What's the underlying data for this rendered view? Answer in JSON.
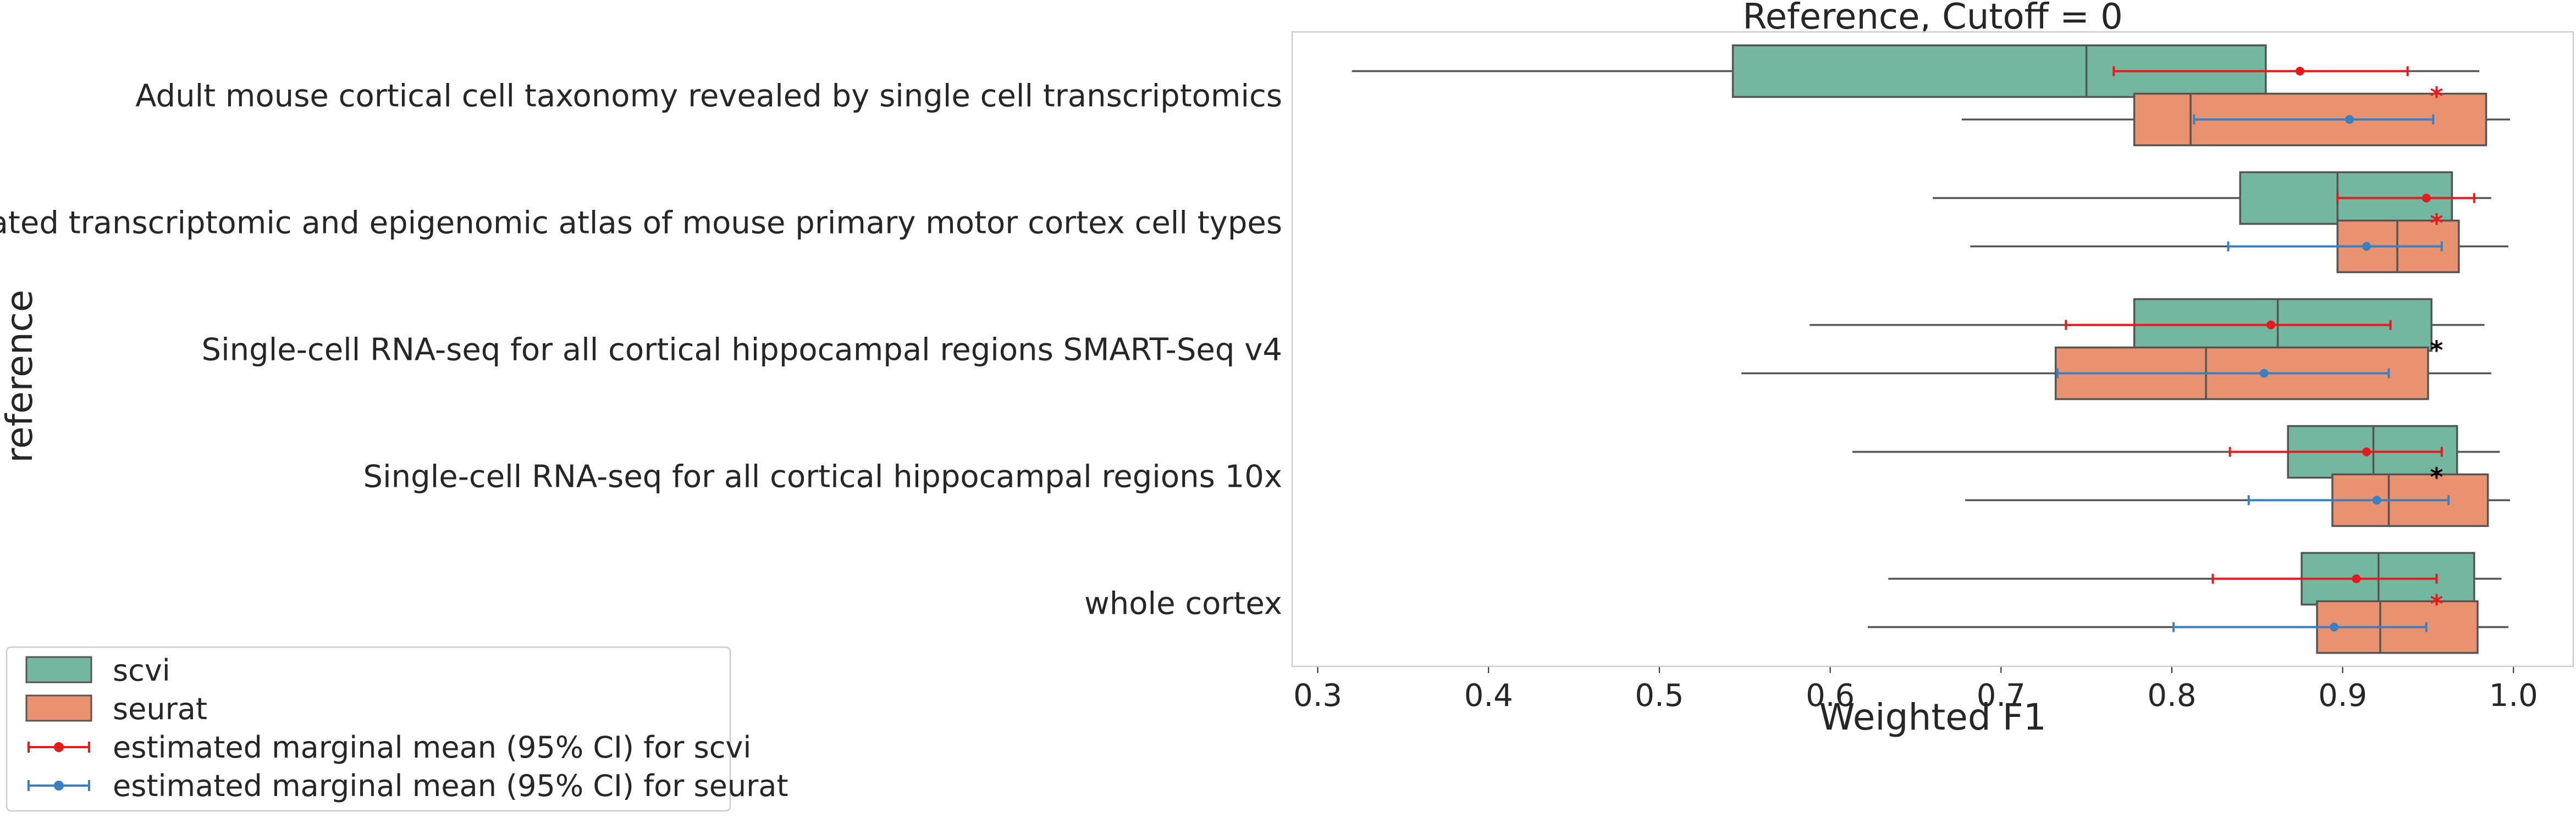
{
  "chart_data": {
    "type": "box",
    "orientation": "horizontal",
    "title": "Reference, Cutoff = 0",
    "xlabel": "Weighted F1",
    "ylabel": "reference",
    "xlim": [
      0.285,
      1.035
    ],
    "xticks": [
      0.3,
      0.4,
      0.5,
      0.6,
      0.7,
      0.8,
      0.9,
      1.0
    ],
    "xtick_labels": [
      "0.3",
      "0.4",
      "0.5",
      "0.6",
      "0.7",
      "0.8",
      "0.9",
      "1.0"
    ],
    "grid": false,
    "legend_position": "lower-left outside",
    "categories": [
      "Adult mouse cortical cell taxonomy revealed by single cell transcriptomics",
      "An integrated transcriptomic and epigenomic atlas of mouse primary motor cortex cell types",
      "Single-cell RNA-seq for all cortical  hippocampal regions SMART-Seq v4",
      "Single-cell RNA-seq for all cortical  hippocampal regions 10x",
      "whole cortex"
    ],
    "series": [
      {
        "name": "scvi",
        "color": "#73b7a0",
        "boxes": [
          {
            "whisker_low": 0.32,
            "q1": 0.543,
            "median": 0.75,
            "q3": 0.855,
            "whisker_high": 0.98
          },
          {
            "whisker_low": 0.66,
            "q1": 0.84,
            "median": 0.897,
            "q3": 0.964,
            "whisker_high": 0.987
          },
          {
            "whisker_low": 0.588,
            "q1": 0.778,
            "median": 0.862,
            "q3": 0.952,
            "whisker_high": 0.983
          },
          {
            "whisker_low": 0.613,
            "q1": 0.868,
            "median": 0.918,
            "q3": 0.967,
            "whisker_high": 0.992
          },
          {
            "whisker_low": 0.634,
            "q1": 0.876,
            "median": 0.921,
            "q3": 0.977,
            "whisker_high": 0.993
          }
        ]
      },
      {
        "name": "seurat",
        "color": "#e9926f",
        "boxes": [
          {
            "whisker_low": 0.677,
            "q1": 0.778,
            "median": 0.811,
            "q3": 0.984,
            "whisker_high": 0.998
          },
          {
            "whisker_low": 0.682,
            "q1": 0.897,
            "median": 0.932,
            "q3": 0.968,
            "whisker_high": 0.997
          },
          {
            "whisker_low": 0.548,
            "q1": 0.732,
            "median": 0.82,
            "q3": 0.95,
            "whisker_high": 0.987
          },
          {
            "whisker_low": 0.679,
            "q1": 0.894,
            "median": 0.927,
            "q3": 0.985,
            "whisker_high": 0.998
          },
          {
            "whisker_low": 0.622,
            "q1": 0.885,
            "median": 0.922,
            "q3": 0.979,
            "whisker_high": 0.997
          }
        ]
      }
    ],
    "marginal_means": [
      {
        "name": "estimated marginal mean (95% CI) for scvi",
        "color": "#e41a1c",
        "points": [
          {
            "mean": 0.875,
            "ci_low": 0.766,
            "ci_high": 0.938
          },
          {
            "mean": 0.949,
            "ci_low": 0.897,
            "ci_high": 0.977
          },
          {
            "mean": 0.858,
            "ci_low": 0.738,
            "ci_high": 0.928
          },
          {
            "mean": 0.914,
            "ci_low": 0.834,
            "ci_high": 0.958
          },
          {
            "mean": 0.908,
            "ci_low": 0.824,
            "ci_high": 0.955
          }
        ]
      },
      {
        "name": "estimated marginal mean (95% CI) for seurat",
        "color": "#3a7fc1",
        "points": [
          {
            "mean": 0.904,
            "ci_low": 0.813,
            "ci_high": 0.953
          },
          {
            "mean": 0.914,
            "ci_low": 0.833,
            "ci_high": 0.958
          },
          {
            "mean": 0.854,
            "ci_low": 0.733,
            "ci_high": 0.927
          },
          {
            "mean": 0.92,
            "ci_low": 0.845,
            "ci_high": 0.962
          },
          {
            "mean": 0.895,
            "ci_low": 0.801,
            "ci_high": 0.949
          }
        ]
      }
    ],
    "significance_markers": [
      {
        "category_index": 0,
        "value": 0.955,
        "label": "*",
        "color": "#e41a1c"
      },
      {
        "category_index": 1,
        "value": 0.955,
        "label": "*",
        "color": "#e41a1c"
      },
      {
        "category_index": 2,
        "value": 0.955,
        "label": "*",
        "color": "#000000"
      },
      {
        "category_index": 3,
        "value": 0.955,
        "label": "*",
        "color": "#000000"
      },
      {
        "category_index": 4,
        "value": 0.955,
        "label": "*",
        "color": "#e41a1c"
      }
    ],
    "legend": [
      {
        "label": "scvi",
        "kind": "patch",
        "color": "#73b7a0"
      },
      {
        "label": "seurat",
        "kind": "patch",
        "color": "#e9926f"
      },
      {
        "label": "estimated marginal mean (95% CI) for scvi",
        "kind": "errorbar",
        "color": "#e41a1c"
      },
      {
        "label": "estimated marginal mean (95% CI) for seurat",
        "kind": "errorbar",
        "color": "#3a7fc1"
      }
    ]
  }
}
